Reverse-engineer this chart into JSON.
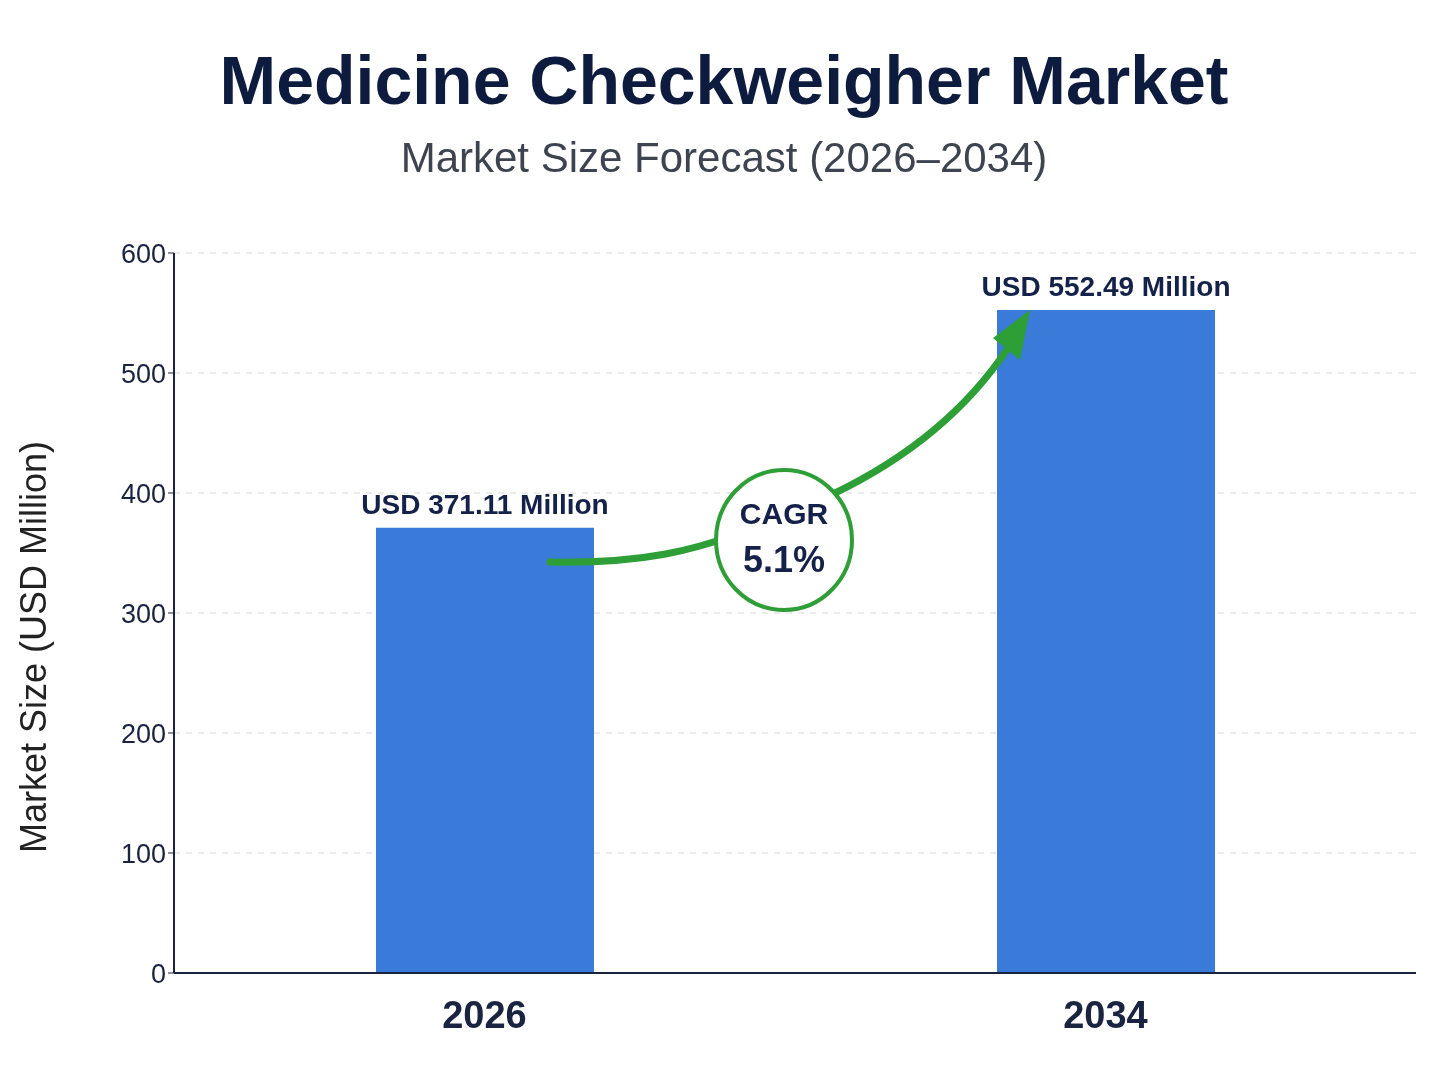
{
  "chart_data": {
    "type": "bar",
    "title": "Medicine Checkweigher Market",
    "subtitle": "Market Size Forecast (2026–2034)",
    "ylabel": "Market Size (USD Million)",
    "categories": [
      "2026",
      "2034"
    ],
    "values": [
      371.11,
      552.49
    ],
    "value_labels": [
      "USD 371.11 Million",
      "USD 552.49 Million"
    ],
    "color": "#3a7ad8",
    "ylim": [
      0,
      600
    ],
    "yticks": [
      0,
      100,
      200,
      300,
      400,
      500,
      600
    ],
    "grid": "y",
    "legend": false,
    "annotations": [
      "CAGR",
      "5.1%"
    ]
  }
}
